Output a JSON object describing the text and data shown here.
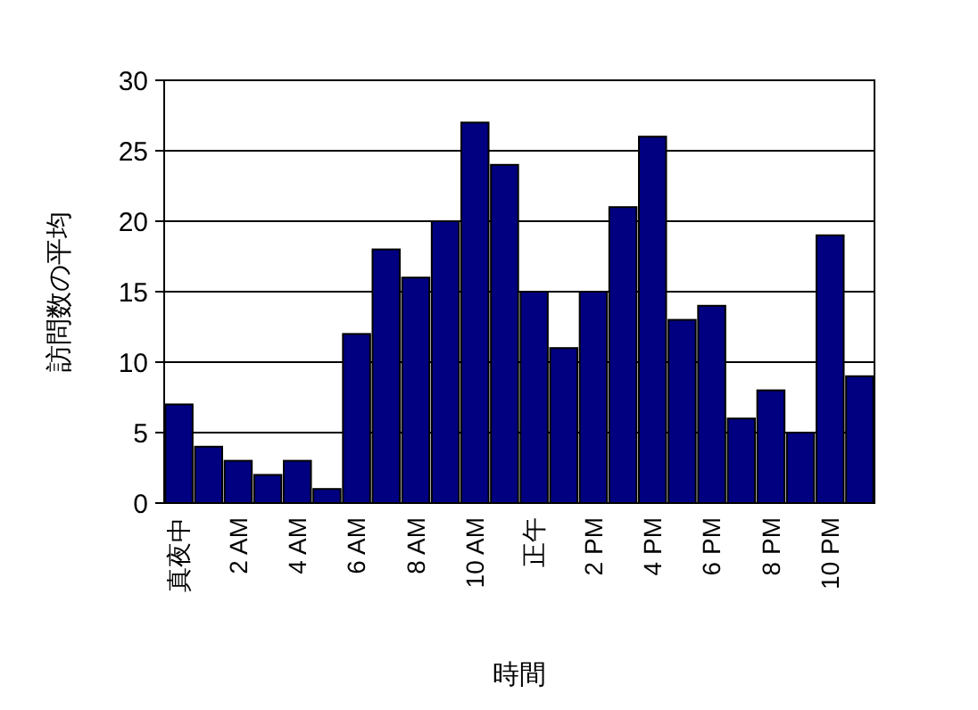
{
  "chart_data": {
    "type": "bar",
    "xlabel": "時間",
    "ylabel": "訪問数の平均",
    "categories": [
      "真夜中",
      null,
      "2 AM",
      null,
      "4 AM",
      null,
      "6 AM",
      null,
      "8 AM",
      null,
      "10 AM",
      null,
      "正午",
      null,
      "2 PM",
      null,
      "4 PM",
      null,
      "6 PM",
      null,
      "8 PM",
      null,
      "10 PM",
      null
    ],
    "values": [
      7,
      4,
      3,
      2,
      3,
      1,
      12,
      18,
      16,
      20,
      27,
      24,
      15,
      11,
      15,
      21,
      26,
      13,
      14,
      6,
      8,
      5,
      19,
      9
    ],
    "color": "#000080",
    "ylim": [
      0,
      30
    ],
    "yticks": [
      0,
      5,
      10,
      15,
      20,
      25,
      30
    ],
    "grid": "y"
  }
}
